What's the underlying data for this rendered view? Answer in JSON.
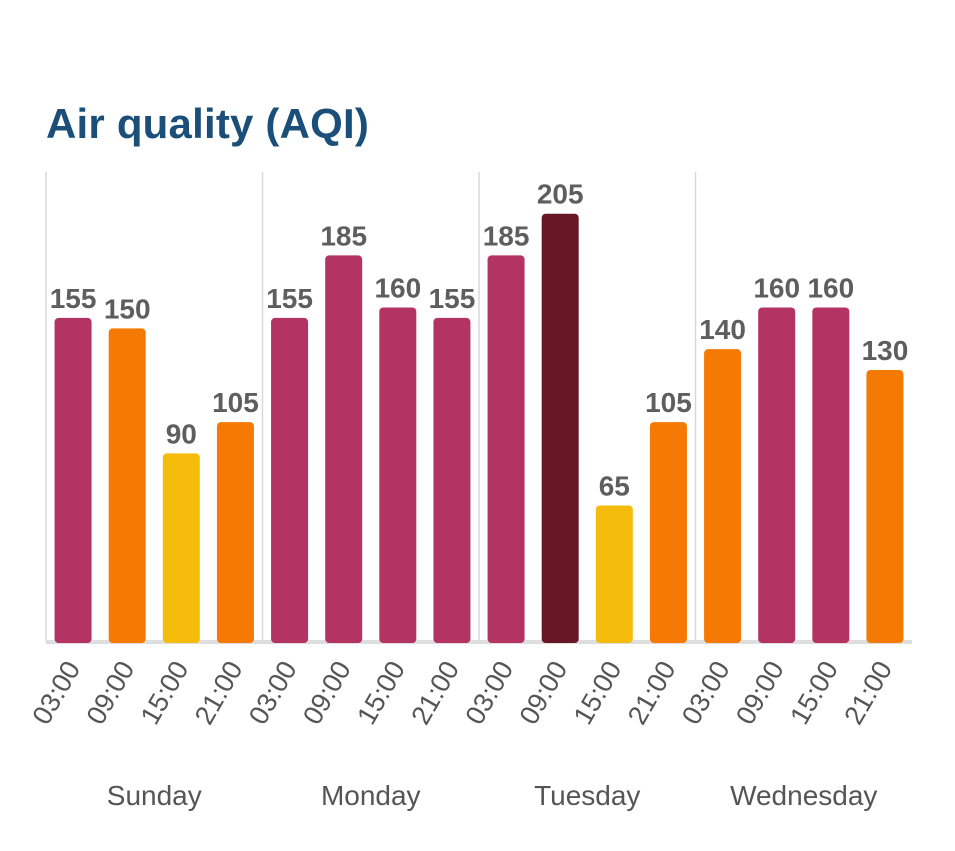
{
  "chart_data": {
    "type": "bar",
    "title": "Air quality (AQI)",
    "xlabel": "",
    "ylabel": "",
    "ylim": [
      0,
      225
    ],
    "grid": true,
    "days": [
      {
        "label": "Sunday",
        "times": [
          "03:00",
          "09:00",
          "15:00",
          "21:00"
        ],
        "values": [
          155,
          150,
          90,
          105
        ]
      },
      {
        "label": "Monday",
        "times": [
          "03:00",
          "09:00",
          "15:00",
          "21:00"
        ],
        "values": [
          155,
          185,
          160,
          155
        ]
      },
      {
        "label": "Tuesday",
        "times": [
          "03:00",
          "09:00",
          "15:00",
          "21:00"
        ],
        "values": [
          185,
          205,
          65,
          105
        ]
      },
      {
        "label": "Wednesday",
        "times": [
          "03:00",
          "09:00",
          "15:00",
          "21:00"
        ],
        "values": [
          140,
          160,
          160,
          130
        ]
      }
    ],
    "colors": {
      "moderate": "#f5bc0c",
      "unhealthy_sensitive": "#f57a05",
      "unhealthy": "#b33462",
      "very_unhealthy": "#681727",
      "title": "#1b4f7a",
      "grid": "#d9d9d9"
    }
  }
}
